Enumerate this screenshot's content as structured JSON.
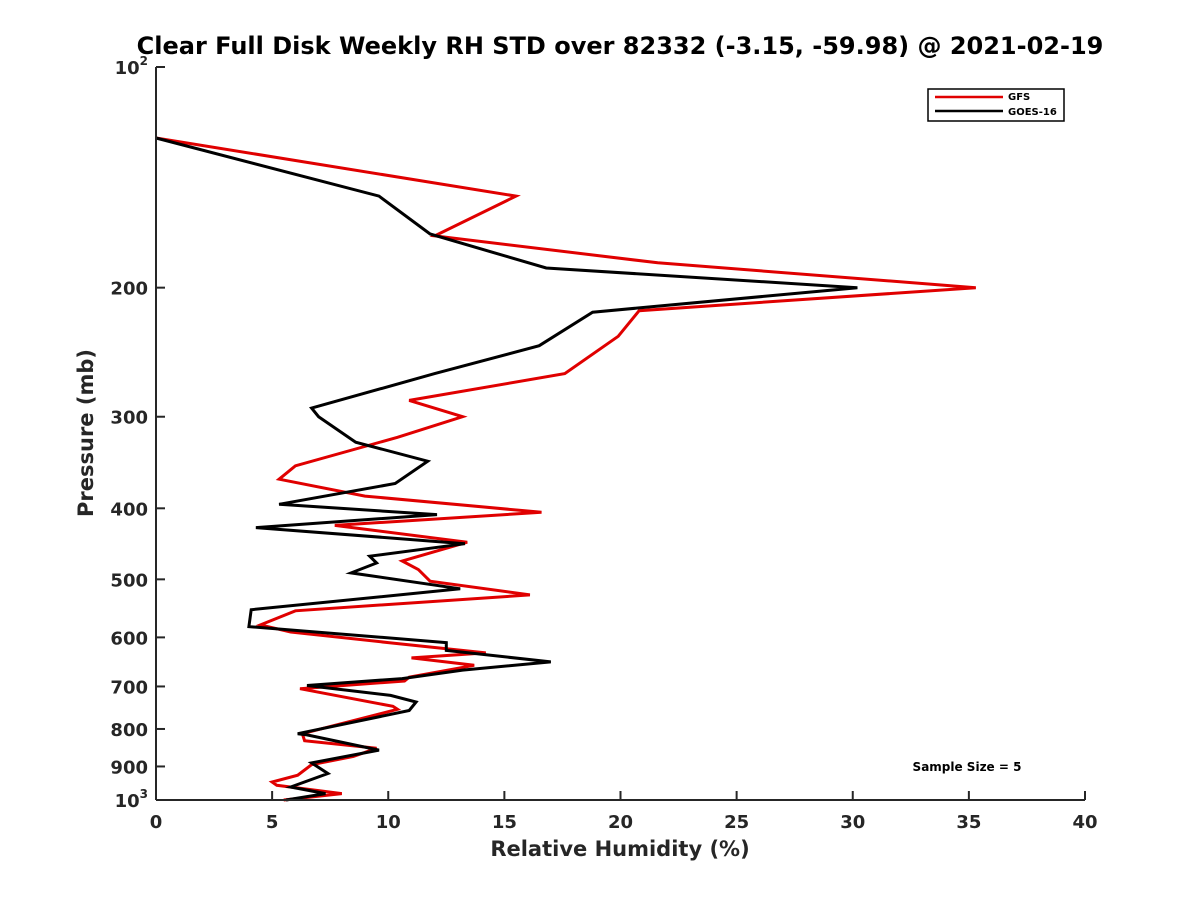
{
  "chart_data": {
    "type": "line",
    "title": "Clear Full Disk Weekly RH STD over 82332 (-3.15, -59.98) @ 2021-02-19",
    "xlabel": "Relative Humidity (%)",
    "ylabel": "Pressure (mb)",
    "xlim": [
      0,
      40
    ],
    "ylim": [
      100,
      1000
    ],
    "y_scale": "log",
    "y_reversed": true,
    "x_ticks": [
      "0",
      "5",
      "10",
      "15",
      "20",
      "25",
      "30",
      "35",
      "40"
    ],
    "y_ticks": [
      {
        "value": 100,
        "label": "10",
        "sup": "2"
      },
      {
        "value": 200,
        "label": "200"
      },
      {
        "value": 300,
        "label": "300"
      },
      {
        "value": 400,
        "label": "400"
      },
      {
        "value": 500,
        "label": "500"
      },
      {
        "value": 600,
        "label": "600"
      },
      {
        "value": 700,
        "label": "700"
      },
      {
        "value": 800,
        "label": "800"
      },
      {
        "value": 900,
        "label": "900"
      },
      {
        "value": 1000,
        "label": "10",
        "sup": "3"
      }
    ],
    "grid": false,
    "legend_position": "top-right",
    "annotation": "Sample Size = 5",
    "series": [
      {
        "name": "GFS",
        "color": "#e00000",
        "points": [
          [
            0,
            125
          ],
          [
            15.5,
            150
          ],
          [
            12.0,
            170
          ],
          [
            21.6,
            185
          ],
          [
            35.3,
            200
          ],
          [
            20.8,
            215
          ],
          [
            19.9,
            233
          ],
          [
            17.6,
            262
          ],
          [
            10.9,
            285
          ],
          [
            13.2,
            300
          ],
          [
            10.4,
            320
          ],
          [
            6.0,
            350
          ],
          [
            5.3,
            365
          ],
          [
            9.0,
            385
          ],
          [
            16.6,
            405
          ],
          [
            7.7,
            422
          ],
          [
            13.4,
            445
          ],
          [
            10.6,
            472
          ],
          [
            11.3,
            485
          ],
          [
            11.8,
            503
          ],
          [
            16.1,
            525
          ],
          [
            6.0,
            552
          ],
          [
            4.5,
            577
          ],
          [
            5.8,
            590
          ],
          [
            10.0,
            610
          ],
          [
            14.2,
            630
          ],
          [
            11.0,
            640
          ],
          [
            13.7,
            655
          ],
          [
            10.9,
            680
          ],
          [
            10.7,
            688
          ],
          [
            6.2,
            705
          ],
          [
            10.2,
            745
          ],
          [
            10.4,
            752
          ],
          [
            6.3,
            812
          ],
          [
            6.4,
            830
          ],
          [
            9.5,
            850
          ],
          [
            8.5,
            872
          ],
          [
            6.7,
            895
          ],
          [
            6.1,
            925
          ],
          [
            5.0,
            945
          ],
          [
            5.2,
            955
          ],
          [
            8.0,
            980
          ],
          [
            5.5,
            1000
          ]
        ]
      },
      {
        "name": "GOES-16",
        "color": "#000000",
        "points": [
          [
            0,
            125
          ],
          [
            9.6,
            150
          ],
          [
            11.8,
            169
          ],
          [
            16.8,
            188
          ],
          [
            30.2,
            200
          ],
          [
            18.8,
            216
          ],
          [
            16.5,
            240
          ],
          [
            12.0,
            262
          ],
          [
            6.7,
            292
          ],
          [
            7.0,
            300
          ],
          [
            8.6,
            325
          ],
          [
            11.7,
            345
          ],
          [
            10.3,
            370
          ],
          [
            5.3,
            395
          ],
          [
            12.1,
            408
          ],
          [
            4.3,
            425
          ],
          [
            13.3,
            447
          ],
          [
            9.2,
            465
          ],
          [
            9.5,
            475
          ],
          [
            8.4,
            490
          ],
          [
            13.1,
            515
          ],
          [
            4.1,
            550
          ],
          [
            4.0,
            580
          ],
          [
            12.5,
            610
          ],
          [
            12.5,
            625
          ],
          [
            17.0,
            648
          ],
          [
            13.2,
            665
          ],
          [
            10.6,
            683
          ],
          [
            6.5,
            698
          ],
          [
            10.1,
            720
          ],
          [
            11.2,
            735
          ],
          [
            10.9,
            755
          ],
          [
            6.1,
            812
          ],
          [
            6.5,
            815
          ],
          [
            9.6,
            855
          ],
          [
            6.7,
            890
          ],
          [
            7.4,
            920
          ],
          [
            5.8,
            960
          ],
          [
            7.3,
            980
          ],
          [
            5.6,
            1000
          ]
        ]
      }
    ]
  }
}
